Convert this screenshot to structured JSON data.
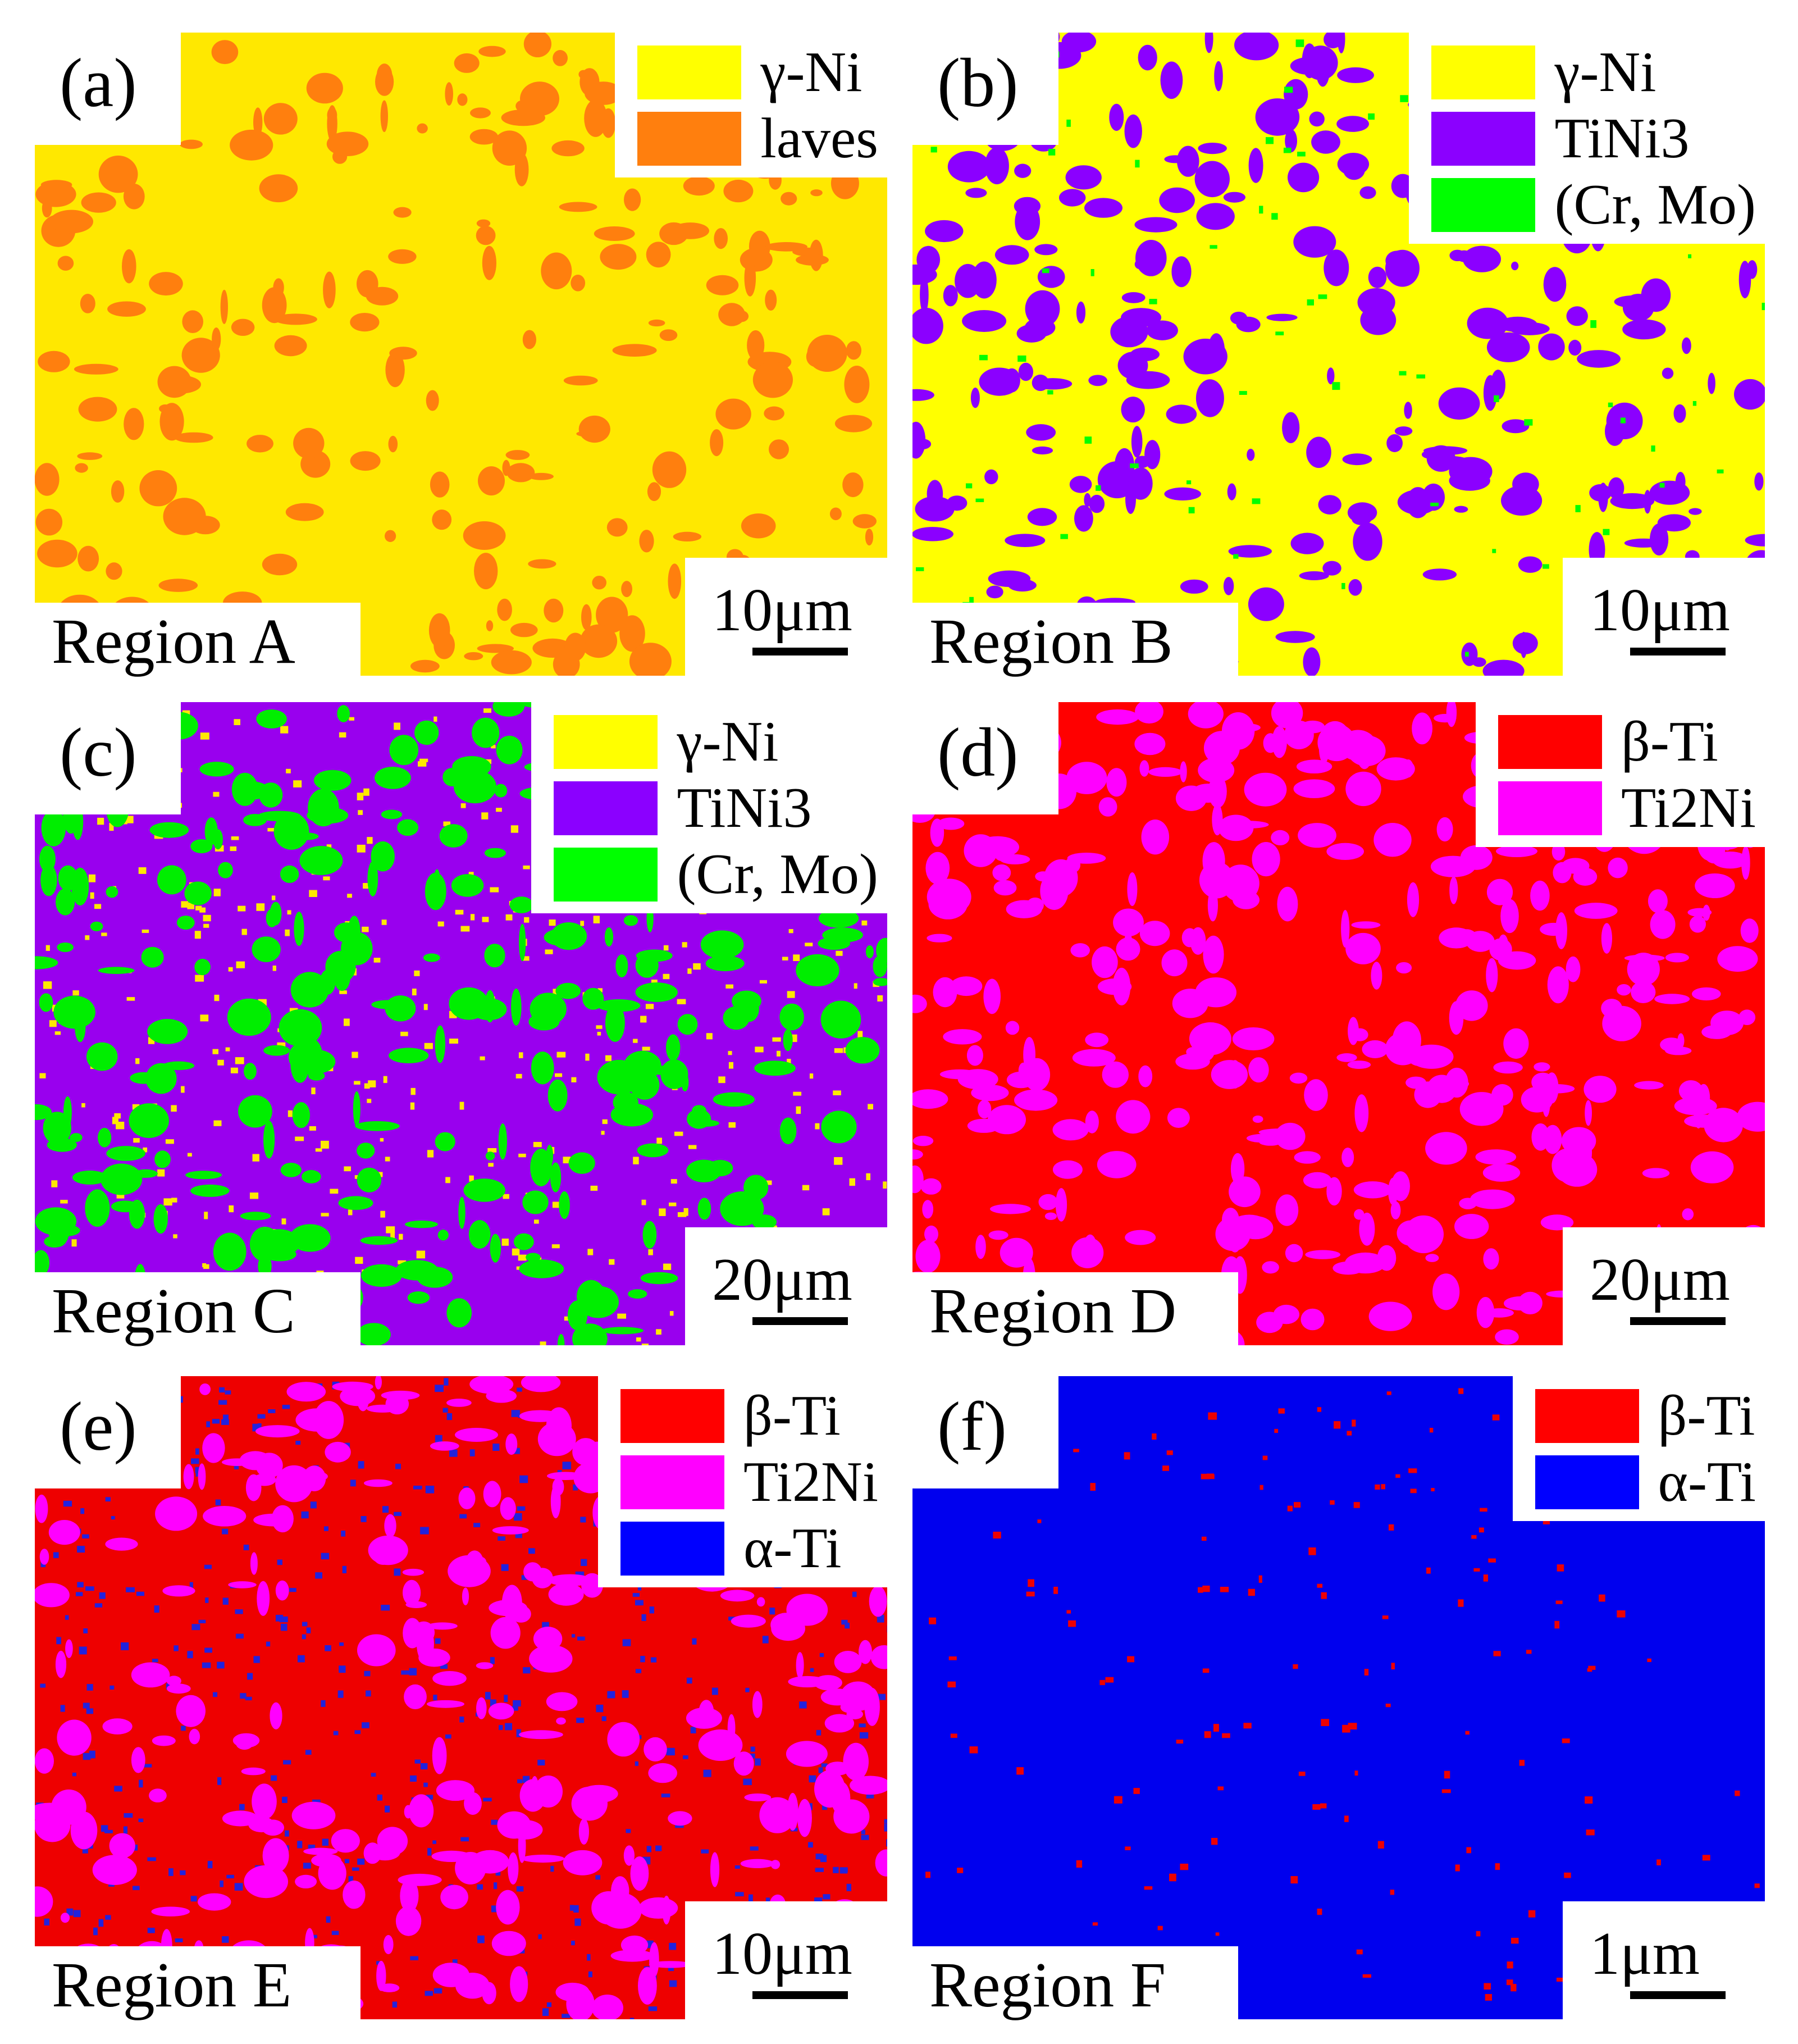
{
  "panels": [
    {
      "id": "a",
      "label": "(a)",
      "region": "Region A",
      "scale": "10μm",
      "background": "#FFE800",
      "specks": [
        {
          "color": "#FF7F0E",
          "density": 0.09,
          "blob": true
        }
      ],
      "legend": [
        {
          "color": "#FFFF00",
          "name": "γ-Ni"
        },
        {
          "color": "#FF7F0E",
          "name": "laves"
        }
      ]
    },
    {
      "id": "b",
      "label": "(b)",
      "region": "Region B",
      "scale": "10μm",
      "background": "#FFFF00",
      "specks": [
        {
          "color": "#8B00FF",
          "density": 0.11,
          "blob": true
        },
        {
          "color": "#00FF00",
          "density": 0.03,
          "blob": false
        }
      ],
      "legend": [
        {
          "color": "#FFFF00",
          "name": "γ-Ni"
        },
        {
          "color": "#8B00FF",
          "name": "TiNi3"
        },
        {
          "color": "#00FF00",
          "name": "(Cr, Mo)"
        }
      ]
    },
    {
      "id": "c",
      "label": "(c)",
      "region": "Region C",
      "scale": "20μm",
      "background": "#9900EE",
      "specks": [
        {
          "color": "#FFE800",
          "density": 0.18,
          "blob": false
        },
        {
          "color": "#00EE00",
          "density": 0.12,
          "blob": true
        }
      ],
      "legend": [
        {
          "color": "#FFFF00",
          "name": "γ-Ni"
        },
        {
          "color": "#8B00FF",
          "name": "TiNi3"
        },
        {
          "color": "#00FF00",
          "name": "(Cr, Mo)"
        }
      ]
    },
    {
      "id": "d",
      "label": "(d)",
      "region": "Region D",
      "scale": "20μm",
      "background": "#FF0000",
      "specks": [
        {
          "color": "#FF00FF",
          "density": 0.14,
          "blob": true
        }
      ],
      "legend": [
        {
          "color": "#FF0000",
          "name": "β-Ti"
        },
        {
          "color": "#FF00FF",
          "name": "Ti2Ni"
        }
      ]
    },
    {
      "id": "e",
      "label": "(e)",
      "region": "Region E",
      "scale": "10μm",
      "background": "#EE0000",
      "specks": [
        {
          "color": "#2222DD",
          "density": 0.2,
          "blob": false
        },
        {
          "color": "#FF00FF",
          "density": 0.12,
          "blob": true
        }
      ],
      "legend": [
        {
          "color": "#FF0000",
          "name": "β-Ti"
        },
        {
          "color": "#FF00FF",
          "name": "Ti2Ni"
        },
        {
          "color": "#0000FF",
          "name": "α-Ti"
        }
      ]
    },
    {
      "id": "f",
      "label": "(f)",
      "region": "Region F",
      "scale": "1μm",
      "background": "#0000EE",
      "specks": [
        {
          "color": "#EE0000",
          "density": 0.07,
          "blob": false
        }
      ],
      "legend": [
        {
          "color": "#FF0000",
          "name": "β-Ti"
        },
        {
          "color": "#0000FF",
          "name": "α-Ti"
        }
      ]
    }
  ]
}
